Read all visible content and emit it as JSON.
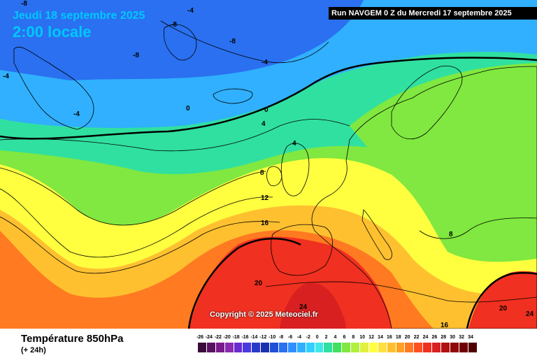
{
  "header": {
    "date_label": "Jeudi 18 septembre 2025",
    "time_label": "2:00 locale",
    "run_label": "Run NAVGEM 0 Z du Mercredi 17 septembre 2025"
  },
  "copyright": "Copyright © 2025 Meteociel.fr",
  "parameter": {
    "title": "Température 850hPa",
    "subtitle": "(+ 24h)"
  },
  "legend": {
    "values": [
      "-26",
      "-24",
      "-22",
      "-20",
      "-18",
      "-16",
      "-14",
      "-12",
      "-10",
      "-8",
      "-6",
      "-4",
      "-2",
      "0",
      "2",
      "4",
      "6",
      "8",
      "10",
      "12",
      "14",
      "16",
      "18",
      "20",
      "22",
      "24",
      "26",
      "28",
      "30",
      "32",
      "34"
    ],
    "colors": [
      "#3a0a3a",
      "#5a1060",
      "#7a1a8a",
      "#8a2ab0",
      "#6a2ad0",
      "#4a3ae0",
      "#2a3ac8",
      "#1a30b0",
      "#2050d8",
      "#2a70f0",
      "#3090ff",
      "#30b0ff",
      "#30d0ff",
      "#40e8e8",
      "#30e0a0",
      "#40e060",
      "#80e840",
      "#b0f040",
      "#e0f040",
      "#ffff40",
      "#ffe040",
      "#ffc030",
      "#ffa020",
      "#ff7a20",
      "#ff5020",
      "#f03020",
      "#d82020",
      "#b01010",
      "#900808",
      "#700000",
      "#500000"
    ]
  },
  "contour_labels": [
    "-8",
    "-8",
    "-4",
    "-8",
    "-8",
    "-4",
    "-4",
    "-4",
    "0",
    "0",
    "4",
    "4",
    "8",
    "12",
    "16",
    "20",
    "24",
    "20",
    "24",
    "16",
    "8"
  ]
}
